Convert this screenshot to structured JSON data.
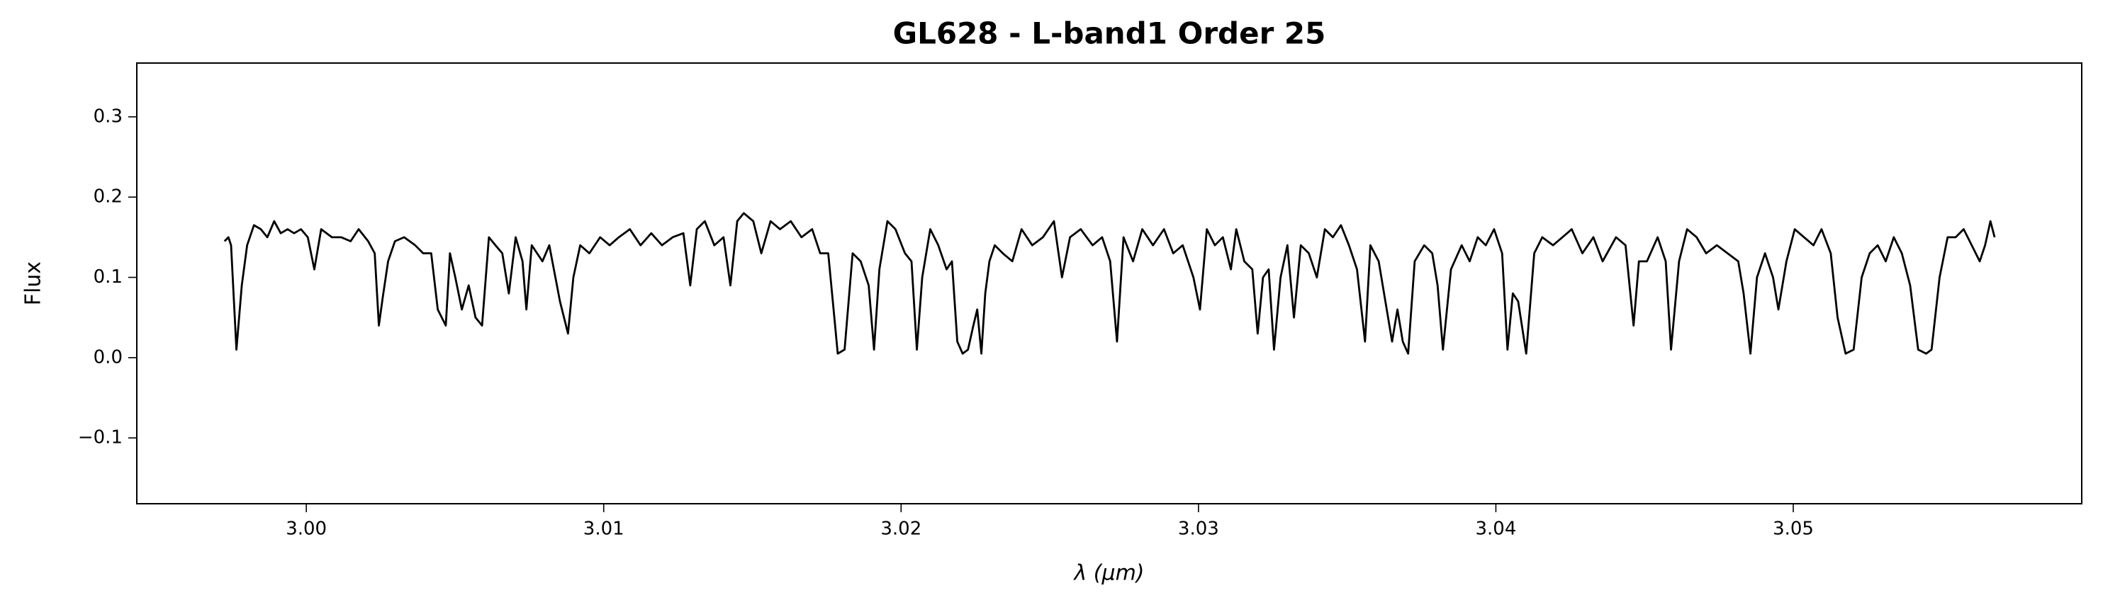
{
  "chart_data": {
    "type": "line",
    "title": "GL628 - L-band1 Order 25",
    "xlabel": "λ (μm)",
    "ylabel": "Flux",
    "xlim": [
      2.9943,
      3.0597
    ],
    "ylim": [
      -0.182,
      0.367
    ],
    "xticks": [
      {
        "value": 3.0,
        "label": "3.00"
      },
      3.01,
      3.02,
      3.03,
      3.04,
      3.05
    ],
    "yticks": [
      {
        "value": -0.1,
        "label": "−0.1"
      },
      {
        "value": 0,
        "label": "0.0"
      },
      0.1,
      0.2,
      0.3
    ],
    "grid": false,
    "x": [
      2.99725,
      2.99738,
      2.99747,
      2.99765,
      2.99783,
      2.99801,
      2.99824,
      2.99847,
      2.99869,
      2.99892,
      2.99914,
      2.99937,
      2.99959,
      2.99982,
      3.00005,
      3.00027,
      3.0005,
      3.00086,
      3.00117,
      3.00149,
      3.00176,
      3.00208,
      3.0023,
      3.00244,
      3.00257,
      3.00275,
      3.00298,
      3.00329,
      3.00366,
      3.00393,
      3.0042,
      3.00442,
      3.00469,
      3.00483,
      3.00501,
      3.00523,
      3.00546,
      3.00569,
      3.00591,
      3.00614,
      3.00636,
      3.00659,
      3.00681,
      3.00704,
      3.00727,
      3.0074,
      3.00758,
      3.00794,
      3.00817,
      3.00853,
      3.0088,
      3.00898,
      3.00921,
      3.00952,
      3.00988,
      3.0102,
      3.01051,
      3.01088,
      3.01124,
      3.0116,
      3.01196,
      3.01232,
      3.01268,
      3.01291,
      3.01313,
      3.0134,
      3.01372,
      3.01403,
      3.01426,
      3.01449,
      3.01471,
      3.01503,
      3.0153,
      3.01561,
      3.01593,
      3.01629,
      3.01665,
      3.01701,
      3.01728,
      3.01755,
      3.01773,
      3.01787,
      3.0181,
      3.01837,
      3.01864,
      3.01891,
      3.01909,
      3.01927,
      3.01954,
      3.01981,
      3.02013,
      3.02035,
      3.02053,
      3.02071,
      3.02098,
      3.02125,
      3.02153,
      3.02171,
      3.02189,
      3.02207,
      3.02225,
      3.02243,
      3.02256,
      3.0227,
      3.02283,
      3.02297,
      3.02315,
      3.02342,
      3.02374,
      3.02405,
      3.02441,
      3.02477,
      3.02514,
      3.02541,
      3.02568,
      3.02604,
      3.02644,
      3.02676,
      3.02703,
      3.02726,
      3.02748,
      3.0278,
      3.02811,
      3.02847,
      3.02884,
      3.02915,
      3.02947,
      3.02983,
      3.03005,
      3.03028,
      3.03055,
      3.03082,
      3.03109,
      3.03127,
      3.03154,
      3.03181,
      3.03199,
      3.03217,
      3.03236,
      3.03254,
      3.03276,
      3.03299,
      3.03321,
      3.03344,
      3.03371,
      3.03398,
      3.03425,
      3.03452,
      3.03479,
      3.03506,
      3.03533,
      3.0356,
      3.03578,
      3.03606,
      3.03633,
      3.03651,
      3.03669,
      3.03687,
      3.03705,
      3.03727,
      3.03759,
      3.03786,
      3.03804,
      3.03822,
      3.03849,
      3.03885,
      3.03912,
      3.03939,
      3.03966,
      3.03994,
      3.04021,
      3.04039,
      3.04057,
      3.04075,
      3.04102,
      3.04129,
      3.04156,
      3.04192,
      3.04224,
      3.04255,
      3.04291,
      3.04328,
      3.04359,
      3.04404,
      3.04436,
      3.04463,
      3.04481,
      3.04508,
      3.04544,
      3.04571,
      3.04589,
      3.04616,
      3.04643,
      3.04675,
      3.04707,
      3.04743,
      3.04779,
      3.04815,
      3.04833,
      3.04856,
      3.04878,
      3.04905,
      3.04932,
      3.0495,
      3.04977,
      3.05005,
      3.05036,
      3.05068,
      3.05095,
      3.05126,
      3.05149,
      3.05176,
      3.05203,
      3.0523,
      3.05257,
      3.05284,
      3.05311,
      3.05338,
      3.05365,
      3.05393,
      3.0542,
      3.05447,
      3.05465,
      3.05492,
      3.05519,
      3.05546,
      3.05573,
      3.056,
      3.05627,
      3.05645,
      3.05663,
      3.05677
    ],
    "series": [
      {
        "name": "Flux",
        "color": "#000000",
        "values": [
          0.145,
          0.15,
          0.14,
          0.01,
          0.09,
          0.14,
          0.165,
          0.16,
          0.15,
          0.17,
          0.155,
          0.16,
          0.155,
          0.16,
          0.15,
          0.11,
          0.16,
          0.15,
          0.15,
          0.145,
          0.16,
          0.145,
          0.13,
          0.04,
          0.075,
          0.12,
          0.145,
          0.15,
          0.14,
          0.13,
          0.13,
          0.06,
          0.04,
          0.13,
          0.1,
          0.06,
          0.09,
          0.05,
          0.04,
          0.15,
          0.14,
          0.13,
          0.08,
          0.15,
          0.12,
          0.06,
          0.14,
          0.12,
          0.14,
          0.07,
          0.03,
          0.1,
          0.14,
          0.13,
          0.15,
          0.14,
          0.15,
          0.16,
          0.14,
          0.155,
          0.14,
          0.15,
          0.155,
          0.09,
          0.16,
          0.17,
          0.14,
          0.15,
          0.09,
          0.17,
          0.18,
          0.17,
          0.13,
          0.17,
          0.16,
          0.17,
          0.15,
          0.16,
          0.13,
          0.13,
          0.06,
          0.005,
          0.01,
          0.13,
          0.12,
          0.09,
          0.01,
          0.11,
          0.17,
          0.16,
          0.13,
          0.12,
          0.01,
          0.1,
          0.16,
          0.14,
          0.11,
          0.12,
          0.02,
          0.005,
          0.01,
          0.04,
          0.06,
          0.005,
          0.08,
          0.12,
          0.14,
          0.13,
          0.12,
          0.16,
          0.14,
          0.15,
          0.17,
          0.1,
          0.15,
          0.16,
          0.14,
          0.15,
          0.12,
          0.02,
          0.15,
          0.12,
          0.16,
          0.14,
          0.16,
          0.13,
          0.14,
          0.1,
          0.06,
          0.16,
          0.14,
          0.15,
          0.11,
          0.16,
          0.12,
          0.11,
          0.03,
          0.1,
          0.11,
          0.01,
          0.1,
          0.14,
          0.05,
          0.14,
          0.13,
          0.1,
          0.16,
          0.15,
          0.165,
          0.14,
          0.11,
          0.02,
          0.14,
          0.12,
          0.06,
          0.02,
          0.06,
          0.02,
          0.005,
          0.12,
          0.14,
          0.13,
          0.09,
          0.01,
          0.11,
          0.14,
          0.12,
          0.15,
          0.14,
          0.16,
          0.13,
          0.01,
          0.08,
          0.07,
          0.005,
          0.13,
          0.15,
          0.14,
          0.15,
          0.16,
          0.13,
          0.15,
          0.12,
          0.15,
          0.14,
          0.04,
          0.12,
          0.12,
          0.15,
          0.12,
          0.01,
          0.12,
          0.16,
          0.15,
          0.13,
          0.14,
          0.13,
          0.12,
          0.08,
          0.005,
          0.1,
          0.13,
          0.1,
          0.06,
          0.12,
          0.16,
          0.15,
          0.14,
          0.16,
          0.13,
          0.05,
          0.005,
          0.01,
          0.1,
          0.13,
          0.14,
          0.12,
          0.15,
          0.13,
          0.09,
          0.01,
          0.005,
          0.01,
          0.1,
          0.15,
          0.15,
          0.16,
          0.14,
          0.12,
          0.14,
          0.17,
          0.15
        ]
      }
    ]
  }
}
